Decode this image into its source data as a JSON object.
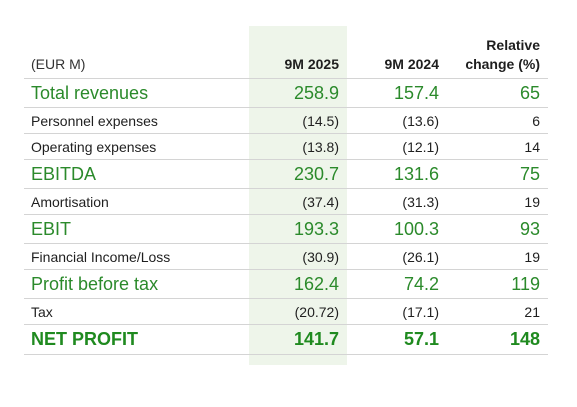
{
  "table": {
    "headers": {
      "label": "(EUR M)",
      "col1": "9M 2025",
      "col2": "9M 2024",
      "col3_line1": "Relative",
      "col3_line2": "change (%)"
    },
    "rows": [
      {
        "label": "Total revenues",
        "v2025": "258.9",
        "v2024": "157.4",
        "change": "65",
        "style": "big"
      },
      {
        "label": "Personnel expenses",
        "v2025": "(14.5)",
        "v2024": "(13.6)",
        "change": "6",
        "style": "small"
      },
      {
        "label": "Operating expenses",
        "v2025": "(13.8)",
        "v2024": "(12.1)",
        "change": "14",
        "style": "small"
      },
      {
        "label": "EBITDA",
        "v2025": "230.7",
        "v2024": "131.6",
        "change": "75",
        "style": "big"
      },
      {
        "label": "Amortisation",
        "v2025": "(37.4)",
        "v2024": "(31.3)",
        "change": "19",
        "style": "small"
      },
      {
        "label": "EBIT",
        "v2025": "193.3",
        "v2024": "100.3",
        "change": "93",
        "style": "big"
      },
      {
        "label": "Financial Income/Loss",
        "v2025": "(30.9)",
        "v2024": "(26.1)",
        "change": "19",
        "style": "small"
      },
      {
        "label": "Profit before tax",
        "v2025": "162.4",
        "v2024": "74.2",
        "change": "119",
        "style": "big"
      },
      {
        "label": "Tax",
        "v2025": "(20.72)",
        "v2024": "(17.1)",
        "change": "21",
        "style": "small"
      },
      {
        "label": "NET PROFIT",
        "v2025": "141.7",
        "v2024": "57.1",
        "change": "148",
        "style": "total"
      }
    ]
  },
  "colors": {
    "accent_green": "#2b8a2b",
    "highlight_column": "#eef5ea",
    "rule": "#d4d4d4"
  }
}
